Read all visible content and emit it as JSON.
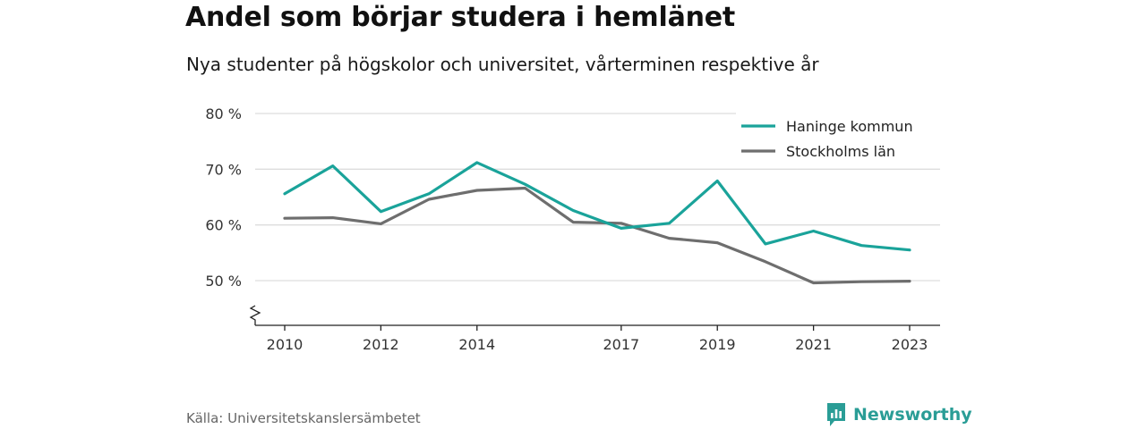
{
  "title": "Andel som börjar studera i hemlänet",
  "subtitle": "Nya studenter på högskolor och universitet, vårterminen respektive år",
  "source": "Källa: Universitetskanslersämbetet",
  "brand": {
    "name": "Newsworthy",
    "icon": "newsworthy-logo-icon",
    "color": "#2a9d96"
  },
  "chart_data": {
    "type": "line",
    "x": [
      2010,
      2011,
      2012,
      2013,
      2014,
      2015,
      2016,
      2017,
      2018,
      2019,
      2020,
      2021,
      2022,
      2023
    ],
    "x_tick_labels": [
      "2010",
      "2012",
      "2014",
      "2017",
      "2019",
      "2021",
      "2023"
    ],
    "x_tick_values": [
      2010,
      2012,
      2014,
      2017,
      2019,
      2021,
      2023
    ],
    "y_tick_labels": [
      "80 %",
      "70 %",
      "60 %",
      "50 %"
    ],
    "y_tick_values": [
      80,
      70,
      60,
      50
    ],
    "ylim": [
      50,
      80
    ],
    "y_axis_break": true,
    "grid": true,
    "legend_position": "top-right",
    "series": [
      {
        "name": "Haninge kommun",
        "color": "#1aa39a",
        "values": [
          65.6,
          70.6,
          62.4,
          65.6,
          71.2,
          67.3,
          62.6,
          59.4,
          60.3,
          67.9,
          56.6,
          58.9,
          56.3,
          55.5
        ]
      },
      {
        "name": "Stockholms län",
        "color": "#6e6e6e",
        "values": [
          61.2,
          61.3,
          60.2,
          64.6,
          66.2,
          66.6,
          60.5,
          60.3,
          57.6,
          56.8,
          53.4,
          49.6,
          49.8,
          49.9
        ]
      }
    ]
  }
}
